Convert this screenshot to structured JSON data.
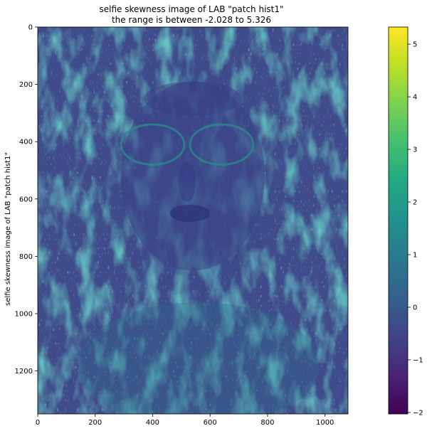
{
  "chart_data": {
    "type": "heatmap",
    "title": "selfie skewness image of LAB \"patch hist1\"",
    "subtitle": "the range is between -2.028 to  5.326",
    "xlabel": "",
    "ylabel": "selfie skewness image of LAB \"patch hist1\"",
    "colormap": "viridis",
    "xlim": [
      0,
      1080
    ],
    "ylim": [
      1350,
      0
    ],
    "x_ticks": [
      0,
      200,
      400,
      600,
      800,
      1000
    ],
    "y_ticks": [
      0,
      200,
      400,
      600,
      800,
      1000,
      1200
    ],
    "colorbar": {
      "range": [
        -2.028,
        5.326
      ],
      "ticks": [
        -2,
        -1,
        0,
        1,
        2,
        3,
        4,
        5
      ]
    },
    "value_range": [
      -2.028,
      5.326
    ]
  }
}
